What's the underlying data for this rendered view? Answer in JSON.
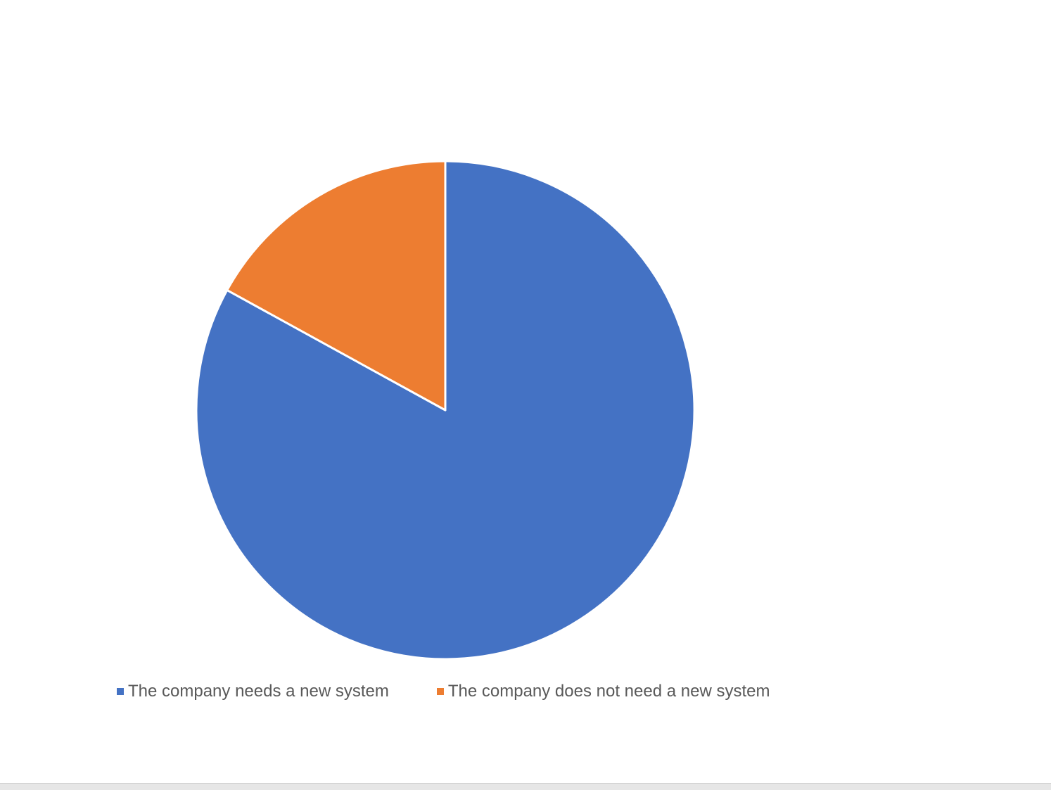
{
  "chart_data": {
    "type": "pie",
    "title": "",
    "categories": [
      "The company needs a new system",
      "The company does not need a new system"
    ],
    "values": [
      83,
      17
    ],
    "colors": [
      "#4472C4",
      "#ED7D31"
    ],
    "start_angle_deg": 0,
    "direction": "clockwise",
    "legend_position": "bottom"
  }
}
